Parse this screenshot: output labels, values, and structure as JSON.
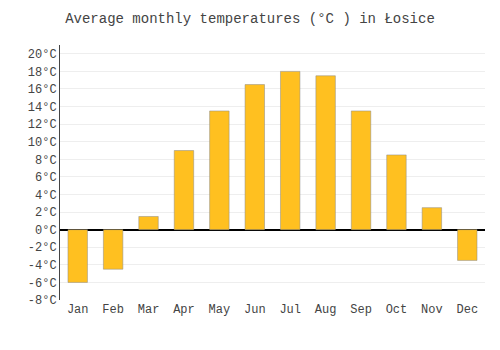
{
  "chart_data": {
    "type": "bar",
    "title": "Average monthly temperatures (°C ) in Łosice",
    "categories": [
      "Jan",
      "Feb",
      "Mar",
      "Apr",
      "May",
      "Jun",
      "Jul",
      "Aug",
      "Sep",
      "Oct",
      "Nov",
      "Dec"
    ],
    "values": [
      -6.0,
      -4.5,
      1.5,
      9.0,
      13.5,
      16.5,
      18.0,
      17.5,
      13.5,
      8.5,
      2.5,
      -3.5
    ],
    "color": "#FFC020",
    "ylim": [
      -8,
      21
    ],
    "yticks": [
      {
        "value": -8,
        "label": "-8°C"
      },
      {
        "value": -6,
        "label": "-6°C"
      },
      {
        "value": -4,
        "label": "-4°C"
      },
      {
        "value": -2,
        "label": "-2°C"
      },
      {
        "value": 0,
        "label": "0°C"
      },
      {
        "value": 2,
        "label": "2°C"
      },
      {
        "value": 4,
        "label": "4°C"
      },
      {
        "value": 6,
        "label": "6°C"
      },
      {
        "value": 8,
        "label": "8°C"
      },
      {
        "value": 10,
        "label": "10°C"
      },
      {
        "value": 12,
        "label": "12°C"
      },
      {
        "value": 14,
        "label": "14°C"
      },
      {
        "value": 16,
        "label": "16°C"
      },
      {
        "value": 18,
        "label": "18°C"
      },
      {
        "value": 20,
        "label": "20°C"
      }
    ],
    "grid": true
  }
}
